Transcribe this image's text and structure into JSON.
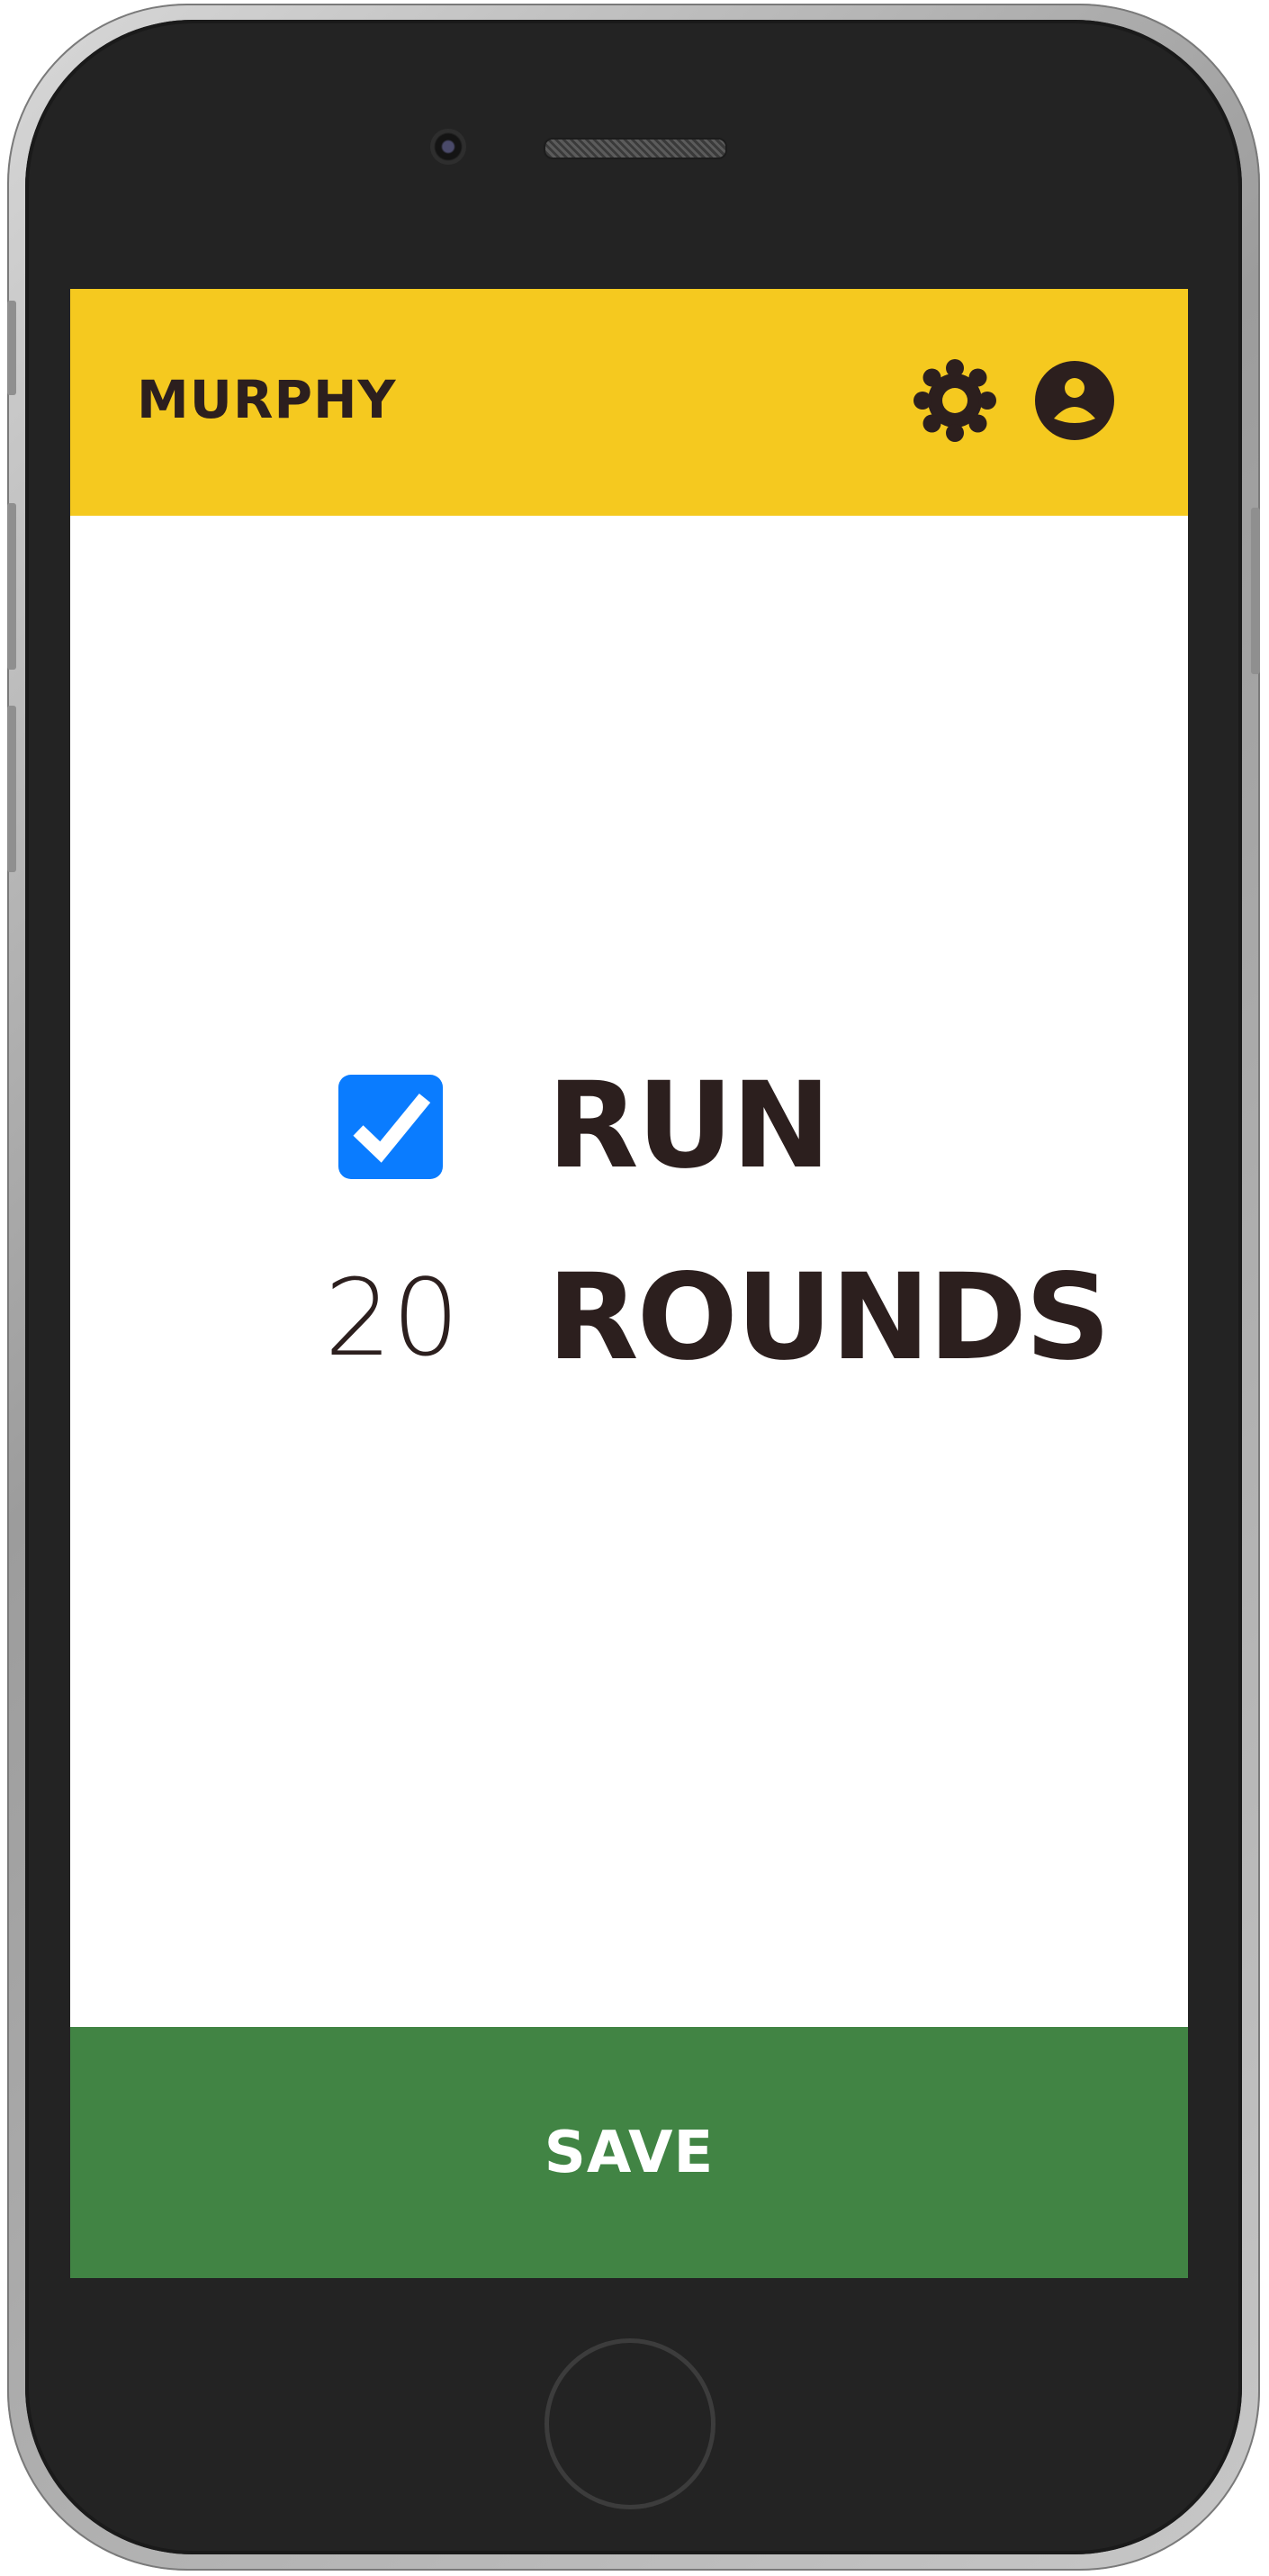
{
  "app": {
    "title": "MURPHY",
    "header_icons": [
      "gear-icon",
      "profile-icon"
    ],
    "colors": {
      "header": "#f5c91f",
      "text": "#2c1f1e",
      "checkbox": "#0a7cff",
      "save": "#418444"
    }
  },
  "workout": {
    "items": [
      {
        "checked": true,
        "label": "RUN"
      },
      {
        "count": "20",
        "label": "ROUNDS"
      }
    ]
  },
  "footer": {
    "save_label": "SAVE"
  }
}
